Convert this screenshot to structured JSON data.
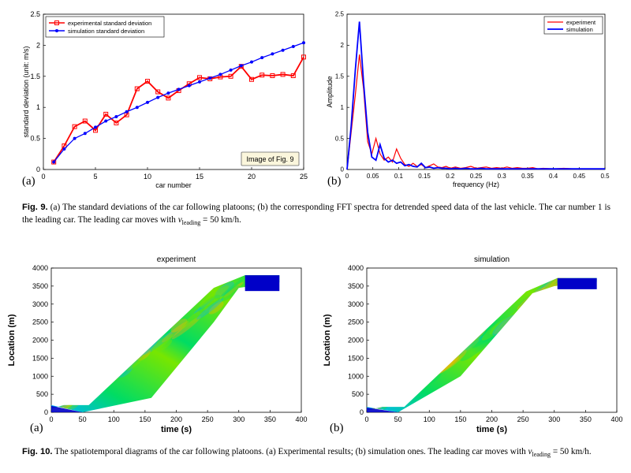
{
  "fig9": {
    "a": {
      "panel_label": "(a)",
      "watermark": "Image of Fig. 9",
      "chart_data": {
        "type": "line",
        "xlabel": "car number",
        "ylabel": "standard deviation (unit: m/s)",
        "xlim": [
          0,
          25
        ],
        "ylim": [
          0,
          2.5
        ],
        "xticks": [
          "0",
          "5",
          "10",
          "15",
          "20",
          "25"
        ],
        "yticks": [
          "0",
          "0.5",
          "1",
          "1.5",
          "2",
          "2.5"
        ],
        "legend_position": "top-left",
        "grid": false,
        "series": [
          {
            "name": "experimental standard deviation",
            "color": "#ff0000",
            "marker": "square",
            "x": [
              1,
              2,
              3,
              4,
              5,
              6,
              7,
              8,
              9,
              10,
              11,
              12,
              13,
              14,
              15,
              16,
              17,
              18,
              19,
              20,
              21,
              22,
              23,
              24,
              25
            ],
            "values": [
              0.12,
              0.38,
              0.69,
              0.78,
              0.63,
              0.89,
              0.75,
              0.88,
              1.3,
              1.42,
              1.25,
              1.15,
              1.27,
              1.38,
              1.48,
              1.46,
              1.49,
              1.5,
              1.66,
              1.45,
              1.52,
              1.51,
              1.53,
              1.51,
              1.81
            ]
          },
          {
            "name": "simulation standard deviation",
            "color": "#0000ff",
            "marker": "dot",
            "x": [
              1,
              2,
              3,
              4,
              5,
              6,
              7,
              8,
              9,
              10,
              11,
              12,
              13,
              14,
              15,
              16,
              17,
              18,
              19,
              20,
              21,
              22,
              23,
              24,
              25
            ],
            "values": [
              0.12,
              0.33,
              0.5,
              0.58,
              0.68,
              0.78,
              0.85,
              0.93,
              1.0,
              1.08,
              1.16,
              1.23,
              1.29,
              1.35,
              1.41,
              1.47,
              1.53,
              1.6,
              1.67,
              1.73,
              1.8,
              1.86,
              1.92,
              1.98,
              2.04
            ]
          }
        ]
      }
    },
    "b": {
      "panel_label": "(b)",
      "chart_data": {
        "type": "line",
        "xlabel": "frequency (Hz)",
        "ylabel": "Amplitude",
        "xlim": [
          0,
          0.5
        ],
        "ylim": [
          0,
          2.5
        ],
        "xticks": [
          "0",
          "0.05",
          "0.1",
          "0.15",
          "0.2",
          "0.25",
          "0.3",
          "0.35",
          "0.4",
          "0.45",
          "0.5"
        ],
        "yticks": [
          "0",
          "0.5",
          "1",
          "1.5",
          "2",
          "2.5"
        ],
        "legend_position": "top-right",
        "grid": false,
        "series": [
          {
            "name": "experiment",
            "color": "#ff0000",
            "x": [
              0,
              0.008,
              0.016,
              0.024,
              0.032,
              0.04,
              0.048,
              0.056,
              0.064,
              0.072,
              0.08,
              0.088,
              0.096,
              0.104,
              0.112,
              0.12,
              0.128,
              0.136,
              0.144,
              0.152,
              0.16,
              0.168,
              0.176,
              0.184,
              0.192,
              0.2,
              0.21,
              0.22,
              0.23,
              0.24,
              0.25,
              0.26,
              0.27,
              0.28,
              0.29,
              0.3,
              0.31,
              0.32,
              0.33,
              0.34,
              0.35,
              0.36,
              0.37,
              0.38,
              0.4,
              0.42,
              0.44,
              0.46,
              0.48,
              0.5
            ],
            "values": [
              0,
              0.6,
              1.2,
              1.85,
              1.3,
              0.45,
              0.25,
              0.5,
              0.25,
              0.15,
              0.2,
              0.12,
              0.33,
              0.18,
              0.08,
              0.05,
              0.1,
              0.05,
              0.08,
              0.03,
              0.06,
              0.09,
              0.04,
              0.03,
              0.05,
              0.02,
              0.04,
              0.02,
              0.03,
              0.05,
              0.02,
              0.03,
              0.04,
              0.02,
              0.03,
              0.02,
              0.04,
              0.02,
              0.03,
              0.02,
              0.02,
              0.03,
              0.01,
              0.02,
              0.01,
              0.02,
              0.01,
              0.01,
              0.01,
              0.01
            ]
          },
          {
            "name": "simulation",
            "color": "#0000ff",
            "x": [
              0,
              0.008,
              0.016,
              0.024,
              0.032,
              0.04,
              0.048,
              0.056,
              0.064,
              0.072,
              0.08,
              0.088,
              0.096,
              0.104,
              0.112,
              0.12,
              0.128,
              0.136,
              0.144,
              0.152,
              0.16,
              0.168,
              0.176,
              0.184,
              0.192,
              0.2,
              0.21,
              0.22,
              0.23,
              0.24,
              0.25,
              0.26,
              0.27,
              0.28,
              0.29,
              0.3,
              0.31,
              0.32,
              0.33,
              0.34,
              0.35,
              0.36,
              0.37,
              0.38,
              0.4,
              0.42,
              0.44,
              0.46,
              0.48,
              0.5
            ],
            "values": [
              0,
              0.7,
              1.6,
              2.38,
              1.4,
              0.6,
              0.2,
              0.15,
              0.4,
              0.18,
              0.12,
              0.15,
              0.1,
              0.12,
              0.06,
              0.08,
              0.05,
              0.04,
              0.1,
              0.03,
              0.04,
              0.02,
              0.03,
              0.02,
              0.02,
              0.01,
              0.02,
              0.01,
              0.02,
              0.01,
              0.01,
              0.02,
              0.01,
              0.01,
              0.01,
              0.01,
              0.01,
              0.01,
              0.01,
              0.01,
              0.01,
              0.01,
              0.01,
              0.01,
              0.01,
              0.01,
              0.01,
              0.01,
              0.01,
              0.01
            ]
          }
        ]
      }
    },
    "caption": {
      "label": "Fig. 9.",
      "text": "(a) The standard deviations of the car following platoons; (b) the corresponding FFT spectra for detrended speed data of the last vehicle. The car number 1 is the leading car. The leading car moves with ",
      "var": "v",
      "sub": "leading",
      "tail": " = 50 km/h."
    }
  },
  "fig10": {
    "a": {
      "panel_label": "(a)",
      "chart_data": {
        "type": "heatmap",
        "title": "experiment",
        "xlabel": "time (s)",
        "ylabel": "Location (m)",
        "xlim": [
          0,
          400
        ],
        "ylim": [
          0,
          4000
        ],
        "xticks": [
          "0",
          "50",
          "100",
          "150",
          "200",
          "250",
          "300",
          "350",
          "400"
        ],
        "yticks": [
          "0",
          "500",
          "1000",
          "1500",
          "2000",
          "2500",
          "3000",
          "3500",
          "4000"
        ],
        "band_lower": [
          [
            0,
            200
          ],
          [
            50,
            0
          ],
          [
            160,
            400
          ],
          [
            260,
            2500
          ],
          [
            300,
            3450
          ],
          [
            365,
            3600
          ]
        ],
        "band_upper": [
          [
            0,
            100
          ],
          [
            20,
            200
          ],
          [
            60,
            200
          ],
          [
            260,
            3450
          ],
          [
            310,
            3800
          ],
          [
            365,
            3800
          ]
        ],
        "colormap": [
          "#0000c8",
          "#00b4ff",
          "#00dc64",
          "#78e600",
          "#ffb400"
        ]
      }
    },
    "b": {
      "panel_label": "(b)",
      "chart_data": {
        "type": "heatmap",
        "title": "simulation",
        "xlabel": "time (s)",
        "ylabel": "Location (m)",
        "xlim": [
          0,
          400
        ],
        "ylim": [
          0,
          4000
        ],
        "xticks": [
          "0",
          "50",
          "100",
          "150",
          "200",
          "250",
          "300",
          "350",
          "400"
        ],
        "yticks": [
          "0",
          "500",
          "1000",
          "1500",
          "2000",
          "2500",
          "3000",
          "3500",
          "4000"
        ],
        "band_lower": [
          [
            0,
            150
          ],
          [
            50,
            0
          ],
          [
            150,
            1000
          ],
          [
            265,
            3300
          ],
          [
            300,
            3500
          ],
          [
            368,
            3620
          ]
        ],
        "band_upper": [
          [
            0,
            50
          ],
          [
            25,
            150
          ],
          [
            60,
            150
          ],
          [
            255,
            3350
          ],
          [
            305,
            3720
          ],
          [
            368,
            3720
          ]
        ],
        "colormap": [
          "#0000c8",
          "#00b4ff",
          "#00dc64",
          "#78e600",
          "#ffb400"
        ]
      }
    },
    "caption": {
      "label": "Fig. 10.",
      "text": "The spatiotemporal diagrams of the car following platoons. (a) Experimental results; (b) simulation ones. The leading car moves with ",
      "var": "v",
      "sub": "leading",
      "tail": " = 50 km/h."
    }
  }
}
